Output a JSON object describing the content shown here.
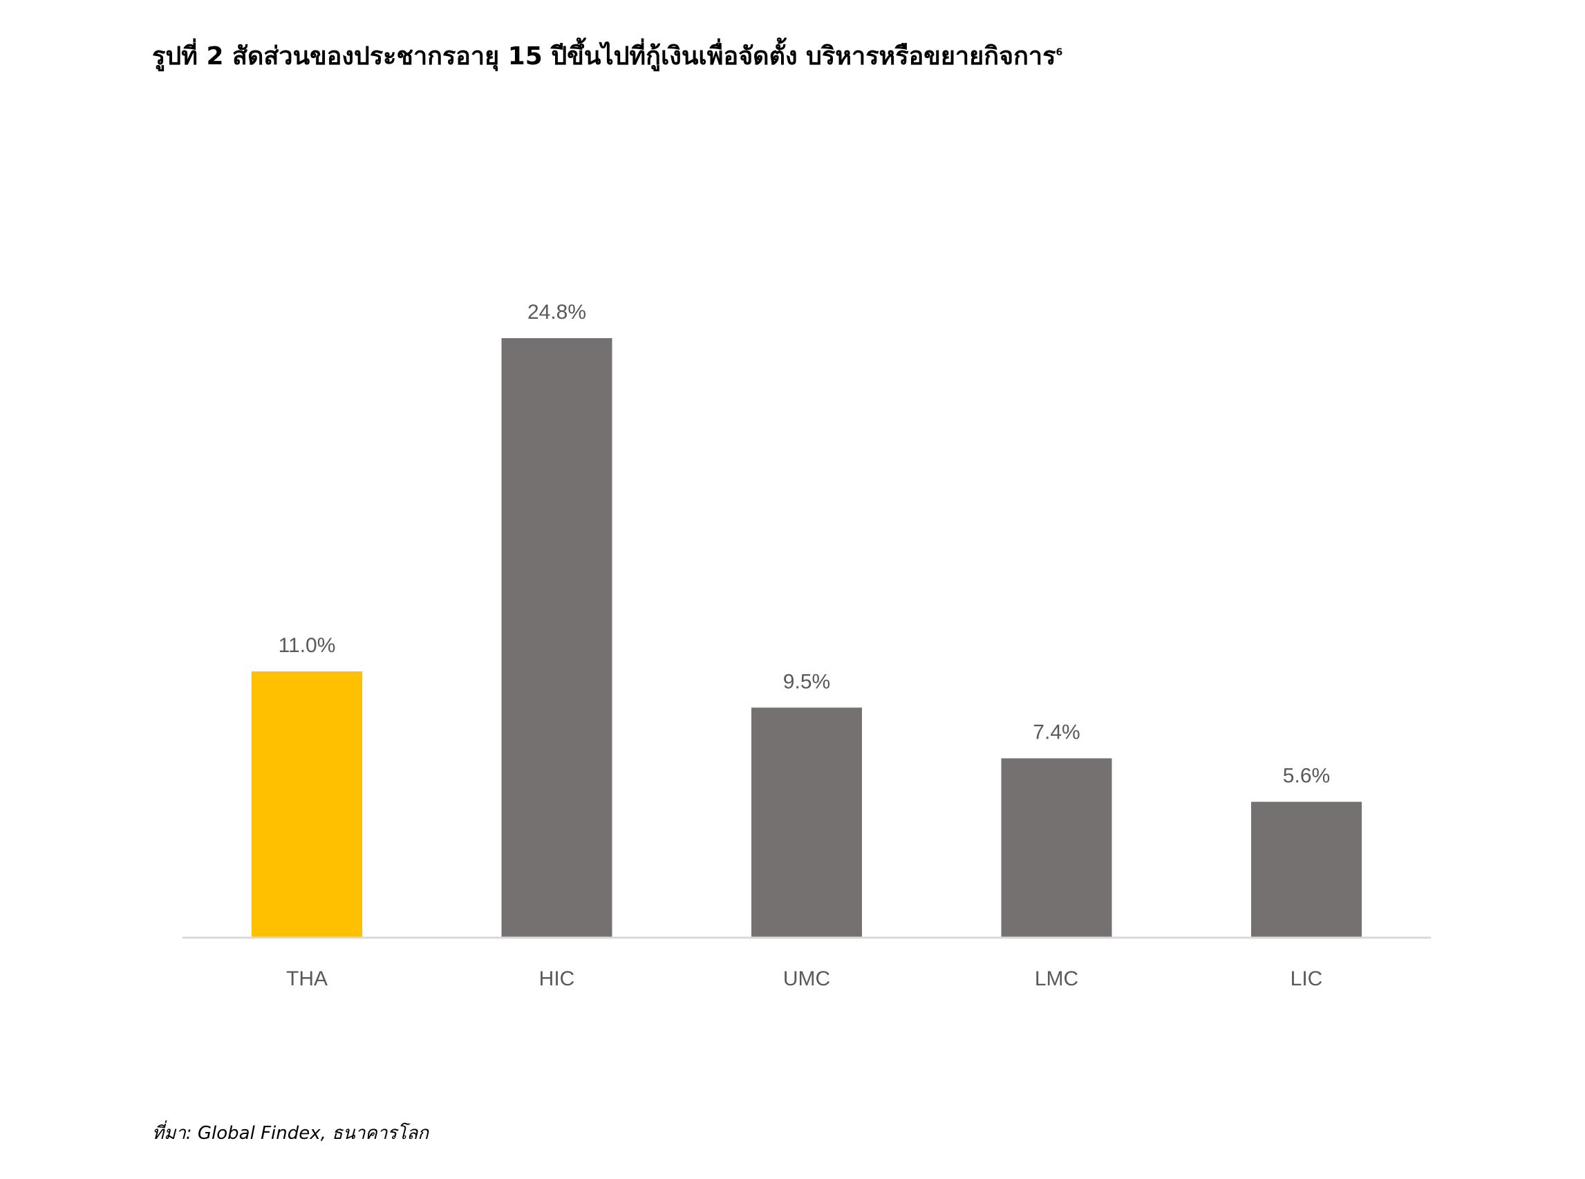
{
  "figure": {
    "title": "รูปที่ 2 สัดส่วนของประชากรอายุ 15 ปีขึ้นไปที่กู้เงินเพื่อจัดตั้ง บริหารหรือขยายกิจการ",
    "title_footnote_marker": "6",
    "source": "ที่มา: Global Findex, ธนาคารโลก"
  },
  "chart_data": {
    "type": "bar",
    "title": "รูปที่ 2 สัดส่วนของประชากรอายุ 15 ปีขึ้นไปที่กู้เงินเพื่อจัดตั้ง บริหารหรือขยายกิจการ",
    "xlabel": "",
    "ylabel": "",
    "categories": [
      "THA",
      "HIC",
      "UMC",
      "LMC",
      "LIC"
    ],
    "values": [
      11.0,
      24.8,
      9.5,
      7.4,
      5.6
    ],
    "data_labels": [
      "11.0%",
      "24.8%",
      "9.5%",
      "7.4%",
      "5.6%"
    ],
    "bar_colors": [
      "#FFC000",
      "#767171",
      "#767171",
      "#767171",
      "#767171"
    ],
    "ylim": [
      0,
      24.8
    ],
    "grid": false,
    "legend": "none"
  },
  "colors": {
    "highlight": "#FFC000",
    "bar": "#767171",
    "axis": "#D9D9D9",
    "label_text": "#595959"
  }
}
